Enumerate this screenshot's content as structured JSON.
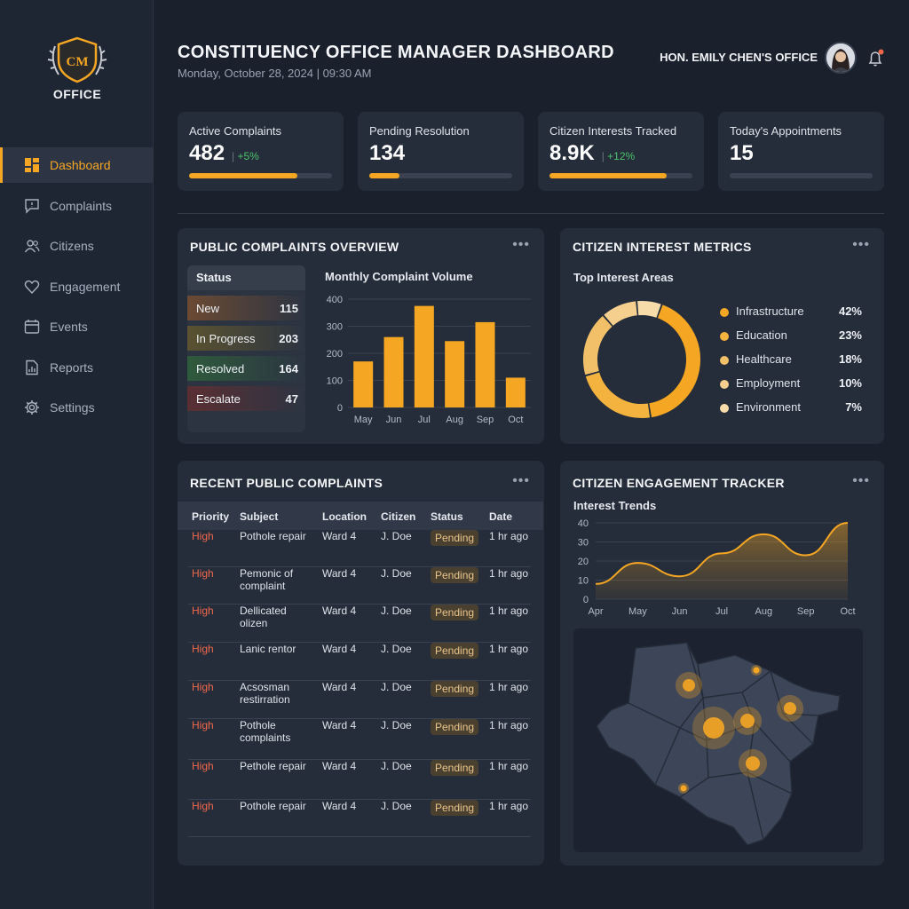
{
  "logo": {
    "monogram": "CM",
    "text": "OFFICE"
  },
  "sidebar": {
    "items": [
      {
        "label": "Dashboard",
        "icon": "dashboard-icon"
      },
      {
        "label": "Complaints",
        "icon": "chat-alert-icon"
      },
      {
        "label": "Citizens",
        "icon": "users-icon"
      },
      {
        "label": "Engagement",
        "icon": "heart-icon"
      },
      {
        "label": "Events",
        "icon": "calendar-icon"
      },
      {
        "label": "Reports",
        "icon": "report-icon"
      },
      {
        "label": "Settings",
        "icon": "gear-icon"
      }
    ]
  },
  "header": {
    "title": "CONSTITUENCY OFFICE MANAGER DASHBOARD",
    "subtitle": "Monday, October 28, 2024 | 09:30 AM",
    "office": "HON. EMILY CHEN'S OFFICE"
  },
  "stats": [
    {
      "label": "Active Complaints",
      "value": "482",
      "delta": "+5%",
      "progress": 0.76
    },
    {
      "label": "Pending Resolution",
      "value": "134",
      "delta": "",
      "progress": 0.21
    },
    {
      "label": "Citizen Interests Tracked",
      "value": "8.9K",
      "delta": "+12%",
      "progress": 0.82
    },
    {
      "label": "Today's Appointments",
      "value": "15",
      "delta": "",
      "progress": 0
    }
  ],
  "complaints_overview": {
    "title": "PUBLIC COMPLAINTS OVERVIEW",
    "status_header": "Status",
    "statuses": [
      {
        "label": "New",
        "value": "115",
        "color": "#6b4a33"
      },
      {
        "label": "In Progress",
        "value": "203",
        "color": "#5a5230"
      },
      {
        "label": "Resolved",
        "value": "164",
        "color": "#2f5a3c"
      },
      {
        "label": "Escalate",
        "value": "47",
        "color": "#5a2f33"
      }
    ],
    "chart_title": "Monthly Complaint Volume"
  },
  "interest_metrics": {
    "title": "CITIZEN INTEREST METRICS",
    "subtitle": "Top Interest Areas"
  },
  "recent_complaints": {
    "title": "RECENT PUBLIC COMPLAINTS",
    "columns": [
      "Priority",
      "Subject",
      "Location",
      "Citizen",
      "Status",
      "Date"
    ],
    "rows": [
      {
        "priority": "High",
        "subject": "Pothole repair",
        "location": "Ward 4",
        "citizen": "J. Doe",
        "status": "Pending",
        "date": "1 hr ago"
      },
      {
        "priority": "High",
        "subject": "Pemonic of complaint",
        "location": "Ward 4",
        "citizen": "J. Doe",
        "status": "Pending",
        "date": "1 hr ago"
      },
      {
        "priority": "High",
        "subject": "Dellicated olizen",
        "location": "Ward 4",
        "citizen": "J. Doe",
        "status": "Pending",
        "date": "1 hr ago"
      },
      {
        "priority": "High",
        "subject": "Lanic rentor",
        "location": "Ward 4",
        "citizen": "J. Doe",
        "status": "Pending",
        "date": "1 hr ago"
      },
      {
        "priority": "High",
        "subject": "Acsosman restirration",
        "location": "Ward 4",
        "citizen": "J. Doe",
        "status": "Pending",
        "date": "1 hr ago"
      },
      {
        "priority": "High",
        "subject": "Pothole complaints",
        "location": "Ward 4",
        "citizen": "J. Doe",
        "status": "Pending",
        "date": "1 hr ago"
      },
      {
        "priority": "High",
        "subject": "Pethole repair",
        "location": "Ward 4",
        "citizen": "J. Doe",
        "status": "Pending",
        "date": "1 hr ago"
      },
      {
        "priority": "High",
        "subject": "Pothole repair",
        "location": "Ward 4",
        "citizen": "J. Doe",
        "status": "Pending",
        "date": "1 hr ago"
      }
    ]
  },
  "engagement": {
    "title": "CITIZEN ENGAGEMENT TRACKER",
    "subtitle": "Interest Trends"
  },
  "colors": {
    "accent": "#f5a623",
    "positive": "#4cc26a",
    "danger": "#f0674d"
  },
  "chart_data": [
    {
      "type": "bar",
      "title": "Monthly Complaint Volume",
      "categories": [
        "May",
        "Jun",
        "Jul",
        "Aug",
        "Sep",
        "Oct"
      ],
      "values": [
        170,
        260,
        375,
        245,
        315,
        110
      ],
      "ylim": [
        0,
        400
      ],
      "yticks": [
        "0",
        "100",
        "200",
        "300",
        "400"
      ],
      "grid": true
    },
    {
      "type": "pie",
      "title": "Top Interest Areas",
      "labels": [
        "Infrastructure",
        "Education",
        "Healthcare",
        "Employment",
        "Environment"
      ],
      "values": [
        42,
        23,
        18,
        10,
        7
      ],
      "display": [
        "42%",
        "23%",
        "18%",
        "10%",
        "7%"
      ],
      "colors": [
        "#f5a623",
        "#f4b23f",
        "#f3c06a",
        "#f5cf8d",
        "#f7dcaa"
      ],
      "legend": "right"
    },
    {
      "type": "area",
      "title": "Interest Trends",
      "x": [
        "Apr",
        "May",
        "Jun",
        "Jul",
        "Aug",
        "Sep",
        "Oct"
      ],
      "values": [
        8,
        19,
        12,
        24,
        34,
        23,
        40
      ],
      "ylim": [
        0,
        40
      ],
      "yticks": [
        "0",
        "10",
        "20",
        "30",
        "40"
      ],
      "grid": true
    }
  ]
}
